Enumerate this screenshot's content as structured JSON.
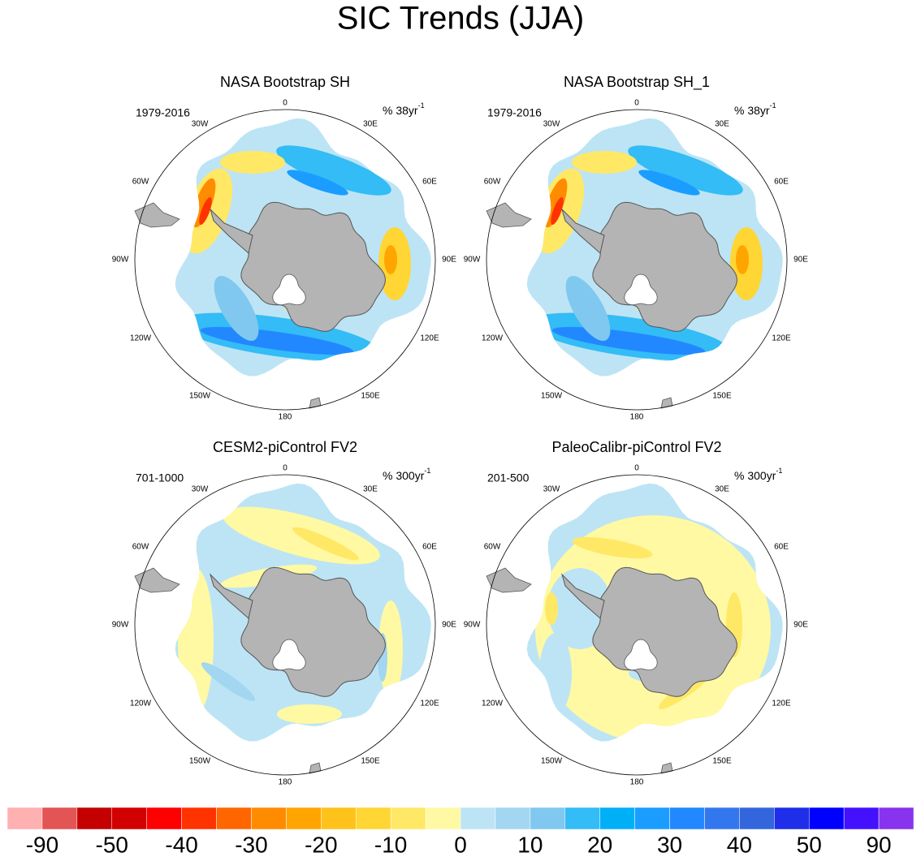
{
  "title": "SIC Trends (JJA)",
  "panels": [
    {
      "title": "NASA Bootstrap SH",
      "period": "1979-2016",
      "units": {
        "text": "% 38yr",
        "sup": "-1"
      }
    },
    {
      "title": "NASA Bootstrap SH_1",
      "period": "1979-2016",
      "units": {
        "text": "% 38yr",
        "sup": "-1"
      }
    },
    {
      "title": "CESM2-piControl FV2",
      "period": "701-1000",
      "units": {
        "text": "% 300yr",
        "sup": "-1"
      }
    },
    {
      "title": "PaleoCalibr-piControl FV2",
      "period": "201-500",
      "units": {
        "text": "% 300yr",
        "sup": "-1"
      }
    }
  ],
  "longitude_labels": [
    "0",
    "30E",
    "60E",
    "90E",
    "120E",
    "150E",
    "180",
    "150W",
    "120W",
    "90W",
    "60W",
    "30W"
  ],
  "colorbar": {
    "colors": [
      "#ffb0b0",
      "#e35454",
      "#c40000",
      "#d20000",
      "#ff0000",
      "#ff3300",
      "#ff6600",
      "#ff8c00",
      "#ffa500",
      "#ffc21a",
      "#ffd633",
      "#ffe866",
      "#fff9a3",
      "#bde4f5",
      "#a3d6f0",
      "#80c8ef",
      "#33bcf5",
      "#00b0f7",
      "#1a9dff",
      "#2288ff",
      "#3377ee",
      "#3366dd",
      "#1f2ee8",
      "#0000ff",
      "#4411ff",
      "#8833ee"
    ],
    "labels": [
      "-90",
      "-50",
      "-40",
      "-30",
      "-20",
      "-10",
      "0",
      "10",
      "20",
      "30",
      "40",
      "50",
      "90"
    ]
  }
}
